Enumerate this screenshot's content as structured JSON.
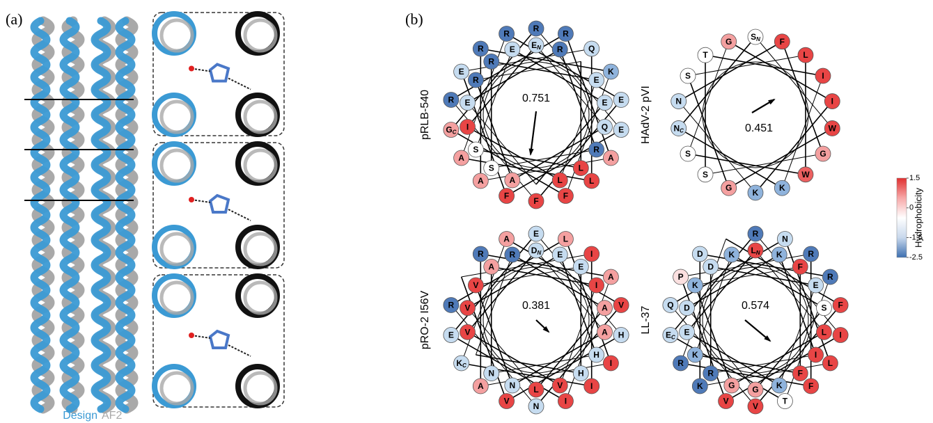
{
  "panel_a": {
    "label": "(a)",
    "legend": [
      {
        "name": "Design",
        "color": "#3b9ad4"
      },
      {
        "name": "AF2",
        "color": "#a9a9a9"
      }
    ]
  },
  "panel_b": {
    "label": "(b)",
    "wheels": [
      {
        "name": "pRLB-540",
        "moment": "0.751",
        "residues": [
          {
            "aa": "R",
            "ring": "o",
            "slot": 0,
            "color": "#4f7ab8"
          },
          {
            "aa": "R",
            "ring": "o",
            "slot": 1,
            "color": "#4f7ab8"
          },
          {
            "aa": "Q",
            "ring": "o",
            "slot": 2,
            "color": "#c6dcf0"
          },
          {
            "aa": "K",
            "ring": "o",
            "slot": 3,
            "color": "#8fb3dc"
          },
          {
            "aa": "E",
            "ring": "o",
            "slot": 4,
            "color": "#c6dcf0"
          },
          {
            "aa": "E",
            "ring": "o",
            "slot": 5,
            "color": "#c6dcf0"
          },
          {
            "aa": "A",
            "ring": "o",
            "slot": 6,
            "color": "#f4a0a0"
          },
          {
            "aa": "L",
            "ring": "o",
            "slot": 7,
            "color": "#e84545"
          },
          {
            "aa": "F",
            "ring": "o",
            "slot": 8,
            "color": "#e84545"
          },
          {
            "aa": "F",
            "ring": "o",
            "slot": 9,
            "color": "#e84545"
          },
          {
            "aa": "F",
            "ring": "o",
            "slot": 10,
            "color": "#e84545"
          },
          {
            "aa": "A",
            "ring": "o",
            "slot": 11,
            "color": "#f4a0a0"
          },
          {
            "aa": "A",
            "ring": "o",
            "slot": 12,
            "color": "#f4a0a0"
          },
          {
            "aa": "G",
            "sub": "C",
            "ring": "o",
            "slot": 13,
            "color": "#f4a0a0"
          },
          {
            "aa": "R",
            "ring": "o",
            "slot": 14,
            "color": "#4f7ab8"
          },
          {
            "aa": "E",
            "ring": "o",
            "slot": 15,
            "color": "#c6dcf0"
          },
          {
            "aa": "R",
            "ring": "o",
            "slot": 16,
            "color": "#4f7ab8"
          },
          {
            "aa": "R",
            "ring": "o",
            "slot": 17,
            "color": "#4f7ab8"
          },
          {
            "aa": "E",
            "sub": "N",
            "ring": "i",
            "slot": 0,
            "color": "#c6dcf0"
          },
          {
            "aa": "R",
            "ring": "i",
            "slot": 1,
            "color": "#4f7ab8"
          },
          {
            "aa": "E",
            "ring": "i",
            "slot": 3,
            "color": "#c6dcf0"
          },
          {
            "aa": "E",
            "ring": "i",
            "slot": 4,
            "color": "#c6dcf0"
          },
          {
            "aa": "Q",
            "ring": "i",
            "slot": 5,
            "color": "#c6dcf0"
          },
          {
            "aa": "R",
            "ring": "i",
            "slot": 6,
            "color": "#4f7ab8"
          },
          {
            "aa": "L",
            "ring": "i",
            "slot": 7,
            "color": "#e84545"
          },
          {
            "aa": "L",
            "ring": "i",
            "slot": 8,
            "color": "#e84545"
          },
          {
            "aa": "A",
            "ring": "i",
            "slot": 10,
            "color": "#f4a0a0"
          },
          {
            "aa": "S",
            "ring": "i",
            "slot": 11,
            "color": "#ffffff"
          },
          {
            "aa": "S",
            "ring": "i",
            "slot": 12,
            "color": "#ffffff"
          },
          {
            "aa": "I",
            "ring": "i",
            "slot": 13,
            "color": "#e84545"
          },
          {
            "aa": "E",
            "ring": "i",
            "slot": 14,
            "color": "#c6dcf0"
          },
          {
            "aa": "R",
            "ring": "i",
            "slot": 15,
            "color": "#4f7ab8"
          },
          {
            "aa": "R",
            "ring": "i",
            "slot": 16,
            "color": "#4f7ab8"
          },
          {
            "aa": "E",
            "ring": "i",
            "slot": 17,
            "color": "#c6dcf0"
          }
        ]
      },
      {
        "name": "HAdV-2 pVI",
        "moment": "0.451",
        "residues": [
          {
            "aa": "S",
            "sub": "N",
            "ring": "m",
            "slot": 0,
            "color": "#ffffff"
          },
          {
            "aa": "F",
            "ring": "m",
            "slot": 1,
            "color": "#e84545"
          },
          {
            "aa": "L",
            "ring": "m",
            "slot": 2,
            "color": "#e84545"
          },
          {
            "aa": "I",
            "ring": "m",
            "slot": 3,
            "color": "#e84545"
          },
          {
            "aa": "I",
            "ring": "m",
            "slot": 4,
            "color": "#e84545"
          },
          {
            "aa": "W",
            "ring": "m",
            "slot": 5,
            "color": "#e84545"
          },
          {
            "aa": "G",
            "ring": "m",
            "slot": 6,
            "color": "#f4a0a0"
          },
          {
            "aa": "W",
            "ring": "m",
            "slot": 7,
            "color": "#ec6060"
          },
          {
            "aa": "K",
            "ring": "m",
            "slot": 8,
            "color": "#8fb3dc"
          },
          {
            "aa": "K",
            "ring": "m",
            "slot": 9,
            "color": "#8fb3dc"
          },
          {
            "aa": "G",
            "ring": "m",
            "slot": 10,
            "color": "#f4a0a0"
          },
          {
            "aa": "S",
            "ring": "m",
            "slot": 11,
            "color": "#ffffff"
          },
          {
            "aa": "S",
            "ring": "m",
            "slot": 12,
            "color": "#ffffff"
          },
          {
            "aa": "N",
            "sub": "C",
            "ring": "m",
            "slot": 13,
            "color": "#c6dcf0"
          },
          {
            "aa": "N",
            "ring": "m",
            "slot": 14,
            "color": "#c6dcf0"
          },
          {
            "aa": "S",
            "ring": "m",
            "slot": 15,
            "color": "#ffffff"
          },
          {
            "aa": "T",
            "ring": "m",
            "slot": 16,
            "color": "#ffffff"
          },
          {
            "aa": "G",
            "ring": "m",
            "slot": 17,
            "color": "#f4a0a0"
          }
        ]
      },
      {
        "name": "pRO-2 I56V",
        "moment": "0.381",
        "residues": [
          {
            "aa": "E",
            "ring": "o",
            "slot": 0,
            "color": "#c6dcf0"
          },
          {
            "aa": "L",
            "ring": "o",
            "slot": 1,
            "color": "#f4a0a0"
          },
          {
            "aa": "I",
            "ring": "o",
            "slot": 2,
            "color": "#e84545"
          },
          {
            "aa": "A",
            "ring": "o",
            "slot": 3,
            "color": "#f4a0a0"
          },
          {
            "aa": "V",
            "ring": "o",
            "slot": 4,
            "color": "#e84545"
          },
          {
            "aa": "H",
            "ring": "o",
            "slot": 5,
            "color": "#c6dcf0"
          },
          {
            "aa": "I",
            "ring": "o",
            "slot": 6,
            "color": "#e84545"
          },
          {
            "aa": "I",
            "ring": "o",
            "slot": 7,
            "color": "#e84545"
          },
          {
            "aa": "I",
            "ring": "o",
            "slot": 8,
            "color": "#e84545"
          },
          {
            "aa": "N",
            "ring": "o",
            "slot": 9,
            "color": "#c6dcf0"
          },
          {
            "aa": "V",
            "ring": "o",
            "slot": 10,
            "color": "#e84545"
          },
          {
            "aa": "A",
            "ring": "o",
            "slot": 11,
            "color": "#f4a0a0"
          },
          {
            "aa": "K",
            "sub": "C",
            "ring": "o",
            "slot": 12,
            "color": "#c6dcf0"
          },
          {
            "aa": "E",
            "ring": "o",
            "slot": 13,
            "color": "#c6dcf0"
          },
          {
            "aa": "R",
            "ring": "o",
            "slot": 14,
            "color": "#4f7ab8"
          },
          {
            "aa": "R",
            "ring": "o",
            "slot": 16,
            "color": "#4f7ab8"
          },
          {
            "aa": "A",
            "ring": "o",
            "slot": 17,
            "color": "#f4a0a0"
          },
          {
            "aa": "D",
            "sub": "N",
            "ring": "i",
            "slot": 0,
            "color": "#c6dcf0"
          },
          {
            "aa": "E",
            "ring": "i",
            "slot": 1,
            "color": "#c6dcf0"
          },
          {
            "aa": "E",
            "ring": "i",
            "slot": 2,
            "color": "#c6dcf0"
          },
          {
            "aa": "I",
            "ring": "i",
            "slot": 3,
            "color": "#e84545"
          },
          {
            "aa": "A",
            "ring": "i",
            "slot": 4,
            "color": "#f4a0a0"
          },
          {
            "aa": "A",
            "ring": "i",
            "slot": 5,
            "color": "#f4a0a0"
          },
          {
            "aa": "H",
            "ring": "i",
            "slot": 6,
            "color": "#c6dcf0"
          },
          {
            "aa": "H",
            "ring": "i",
            "slot": 7,
            "color": "#c6dcf0"
          },
          {
            "aa": "V",
            "ring": "i",
            "slot": 8,
            "color": "#e84545"
          },
          {
            "aa": "L",
            "ring": "i",
            "slot": 9,
            "color": "#e84545"
          },
          {
            "aa": "N",
            "ring": "i",
            "slot": 10,
            "color": "#c6dcf0"
          },
          {
            "aa": "N",
            "ring": "i",
            "slot": 11,
            "color": "#c6dcf0"
          },
          {
            "aa": "V",
            "ring": "i",
            "slot": 13,
            "color": "#e84545"
          },
          {
            "aa": "V",
            "ring": "i",
            "slot": 14,
            "color": "#e84545"
          },
          {
            "aa": "V",
            "ring": "i",
            "slot": 15,
            "color": "#e84545"
          },
          {
            "aa": "A",
            "ring": "i",
            "slot": 16,
            "color": "#f4a0a0"
          },
          {
            "aa": "R",
            "ring": "i",
            "slot": 17,
            "color": "#4f7ab8"
          }
        ]
      },
      {
        "name": "LL-37",
        "moment": "0.574",
        "residues": [
          {
            "aa": "R",
            "ring": "o",
            "slot": 0,
            "color": "#4f7ab8"
          },
          {
            "aa": "N",
            "ring": "o",
            "slot": 1,
            "color": "#c6dcf0"
          },
          {
            "aa": "R",
            "ring": "o",
            "slot": 2,
            "color": "#4f7ab8"
          },
          {
            "aa": "R",
            "ring": "o",
            "slot": 3,
            "color": "#4f7ab8"
          },
          {
            "aa": "F",
            "ring": "o",
            "slot": 4,
            "color": "#e84545"
          },
          {
            "aa": "I",
            "ring": "o",
            "slot": 5,
            "color": "#e84545"
          },
          {
            "aa": "L",
            "ring": "o",
            "slot": 6,
            "color": "#e84545"
          },
          {
            "aa": "F",
            "ring": "o",
            "slot": 7,
            "color": "#e84545"
          },
          {
            "aa": "T",
            "ring": "o",
            "slot": 8,
            "color": "#ffffff"
          },
          {
            "aa": "V",
            "ring": "o",
            "slot": 9,
            "color": "#e84545"
          },
          {
            "aa": "V",
            "ring": "o",
            "slot": 10,
            "color": "#e84545"
          },
          {
            "aa": "K",
            "ring": "o",
            "slot": 11,
            "color": "#4f7ab8"
          },
          {
            "aa": "R",
            "ring": "o",
            "slot": 12,
            "color": "#4f7ab8"
          },
          {
            "aa": "E",
            "sub": "C",
            "ring": "o",
            "slot": 13,
            "color": "#c6dcf0"
          },
          {
            "aa": "Q",
            "ring": "o",
            "slot": 14,
            "color": "#c6dcf0"
          },
          {
            "aa": "P",
            "ring": "o",
            "slot": 15,
            "color": "#fbe0e0"
          },
          {
            "aa": "D",
            "ring": "o",
            "slot": 16,
            "color": "#c6dcf0"
          },
          {
            "aa": "L",
            "sub": "N",
            "ring": "i",
            "slot": 0,
            "color": "#e84545"
          },
          {
            "aa": "K",
            "ring": "i",
            "slot": 1,
            "color": "#8fb3dc"
          },
          {
            "aa": "F",
            "ring": "i",
            "slot": 2,
            "color": "#e84545"
          },
          {
            "aa": "E",
            "ring": "i",
            "slot": 3,
            "color": "#c6dcf0"
          },
          {
            "aa": "S",
            "ring": "i",
            "slot": 4,
            "color": "#ffffff"
          },
          {
            "aa": "L",
            "ring": "i",
            "slot": 5,
            "color": "#e84545"
          },
          {
            "aa": "I",
            "ring": "i",
            "slot": 6,
            "color": "#e84545"
          },
          {
            "aa": "F",
            "ring": "i",
            "slot": 7,
            "color": "#e84545"
          },
          {
            "aa": "K",
            "ring": "i",
            "slot": 8,
            "color": "#8fb3dc"
          },
          {
            "aa": "G",
            "ring": "i",
            "slot": 9,
            "color": "#f4a0a0"
          },
          {
            "aa": "G",
            "ring": "i",
            "slot": 10,
            "color": "#f4a0a0"
          },
          {
            "aa": "R",
            "ring": "i",
            "slot": 11,
            "color": "#4f7ab8"
          },
          {
            "aa": "K",
            "ring": "i",
            "slot": 12,
            "color": "#8fb3dc"
          },
          {
            "aa": "E",
            "ring": "i",
            "slot": 13,
            "color": "#c6dcf0"
          },
          {
            "aa": "D",
            "ring": "i",
            "slot": 14,
            "color": "#c6dcf0"
          },
          {
            "aa": "K",
            "ring": "i",
            "slot": 15,
            "color": "#8fb3dc"
          },
          {
            "aa": "D",
            "ring": "i",
            "slot": 16,
            "color": "#c6dcf0"
          },
          {
            "aa": "K",
            "ring": "i",
            "slot": 17,
            "color": "#8fb3dc"
          }
        ]
      }
    ],
    "colorbar": {
      "title": "Hydrophobicity",
      "clim": [
        -2.5,
        1.5
      ],
      "ticks": [
        1.5,
        0,
        -1.5,
        -2.5
      ],
      "colors": [
        "#3d6fb0",
        "#c8d8ec",
        "#ffffff",
        "#f7a8a8",
        "#e02f2f"
      ]
    }
  }
}
